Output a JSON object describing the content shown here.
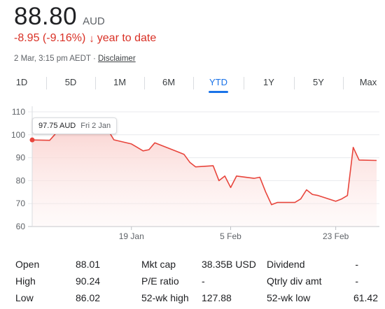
{
  "quote": {
    "price": "88.80",
    "currency": "AUD",
    "change": "-8.95 (-9.16%)",
    "change_arrow": "↓",
    "period": "year to date",
    "timestamp": "2 Mar, 3:15 pm AEDT",
    "separator": "·",
    "disclaimer": "Disclaimer"
  },
  "tabs": [
    {
      "label": "1D"
    },
    {
      "label": "5D"
    },
    {
      "label": "1M"
    },
    {
      "label": "6M"
    },
    {
      "label": "YTD"
    },
    {
      "label": "1Y"
    },
    {
      "label": "5Y"
    },
    {
      "label": "Max"
    }
  ],
  "active_tab": "YTD",
  "tooltip": {
    "value": "97.75 AUD",
    "date": "Fri 2 Jan"
  },
  "colors": {
    "line": "#e8453c",
    "accent": "#1a73e8",
    "negative": "#d93025"
  },
  "chart_data": {
    "type": "area",
    "ylim": [
      60,
      110
    ],
    "yticks": [
      "110",
      "100",
      "90",
      "80",
      "70",
      "60"
    ],
    "xticks": [
      "19 Jan",
      "5 Feb",
      "23 Feb"
    ],
    "x": [
      "2026-01-02",
      "2026-01-05",
      "2026-01-06",
      "2026-01-07",
      "2026-01-08",
      "2026-01-09",
      "2026-01-12",
      "2026-01-13",
      "2026-01-14",
      "2026-01-15",
      "2026-01-16",
      "2026-01-19",
      "2026-01-20",
      "2026-01-21",
      "2026-01-22",
      "2026-01-23",
      "2026-01-27",
      "2026-01-28",
      "2026-01-29",
      "2026-01-30",
      "2026-02-02",
      "2026-02-03",
      "2026-02-04",
      "2026-02-05",
      "2026-02-06",
      "2026-02-09",
      "2026-02-10",
      "2026-02-11",
      "2026-02-12",
      "2026-02-13",
      "2026-02-16",
      "2026-02-17",
      "2026-02-18",
      "2026-02-19",
      "2026-02-20",
      "2026-02-23",
      "2026-02-24",
      "2026-02-25",
      "2026-02-26",
      "2026-02-27",
      "2026-03-02"
    ],
    "values": [
      97.75,
      97.6,
      100.5,
      102,
      102,
      102,
      102,
      102,
      102,
      102,
      97.8,
      96,
      94.5,
      93,
      93.5,
      96.5,
      92.5,
      91.5,
      88,
      86,
      86.5,
      80,
      82,
      77,
      82,
      81,
      81.5,
      75,
      69.5,
      70.5,
      70.5,
      72,
      76,
      74,
      73.5,
      71,
      72,
      73.5,
      94.5,
      89,
      88.8
    ]
  },
  "stats": [
    {
      "label": "Open",
      "value": "88.01"
    },
    {
      "label": "High",
      "value": "90.24"
    },
    {
      "label": "Low",
      "value": "86.02"
    },
    {
      "label": "Mkt cap",
      "value": "38.35B USD"
    },
    {
      "label": "P/E ratio",
      "value": "-"
    },
    {
      "label": "52-wk high",
      "value": "127.88"
    },
    {
      "label": "Dividend",
      "value": "-"
    },
    {
      "label": "Qtrly div amt",
      "value": "-"
    },
    {
      "label": "52-wk low",
      "value": "61.42"
    }
  ]
}
